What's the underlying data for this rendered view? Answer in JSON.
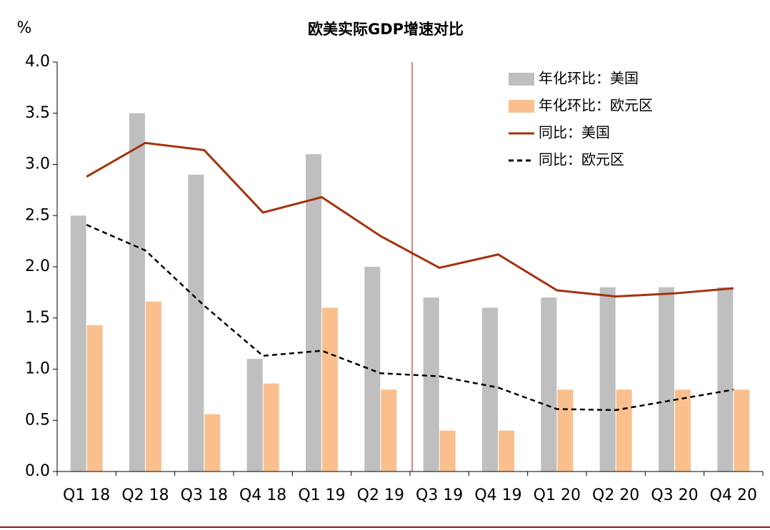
{
  "chart_data": {
    "type": "combo",
    "title": "欧美实际GDP增速对比",
    "y_label": "%",
    "categories": [
      "Q1 18",
      "Q2 18",
      "Q3 18",
      "Q4 18",
      "Q1 19",
      "Q2 19",
      "Q3 19",
      "Q4 19",
      "Q1 20",
      "Q2 20",
      "Q3 20",
      "Q4 20"
    ],
    "series": [
      {
        "name": "年化环比：美国",
        "type": "bar",
        "color": "#bfbfbf",
        "values": [
          2.5,
          3.5,
          2.9,
          1.1,
          3.1,
          2.0,
          1.7,
          1.6,
          1.7,
          1.8,
          1.8,
          1.8
        ]
      },
      {
        "name": "年化环比：欧元区",
        "type": "bar",
        "color": "#f9c08e",
        "values": [
          1.43,
          1.66,
          0.56,
          0.86,
          1.6,
          0.8,
          0.4,
          0.4,
          0.8,
          0.8,
          0.8,
          0.8
        ]
      },
      {
        "name": "同比：美国",
        "type": "line",
        "color": "#a5310e",
        "values": [
          2.88,
          3.21,
          3.14,
          2.53,
          2.68,
          2.3,
          1.99,
          2.12,
          1.77,
          1.71,
          1.74,
          1.79
        ]
      },
      {
        "name": "同比：欧元区",
        "type": "line",
        "color": "#000000",
        "dashed": true,
        "values": [
          2.41,
          2.16,
          1.62,
          1.13,
          1.18,
          0.96,
          0.93,
          0.82,
          0.61,
          0.6,
          0.7,
          0.8
        ]
      }
    ],
    "ylim": [
      0,
      4
    ],
    "yticks": [
      {
        "value": 0,
        "label": "0.0"
      },
      {
        "value": 0.5,
        "label": "0.5"
      },
      {
        "value": 1,
        "label": "1.0"
      },
      {
        "value": 1.5,
        "label": "1.5"
      },
      {
        "value": 2,
        "label": "2.0"
      },
      {
        "value": 2.5,
        "label": "2.5"
      },
      {
        "value": 3,
        "label": "3.0"
      },
      {
        "value": 3.5,
        "label": "3.5"
      },
      {
        "value": 4,
        "label": "4.0"
      }
    ],
    "legend": "upper right"
  }
}
